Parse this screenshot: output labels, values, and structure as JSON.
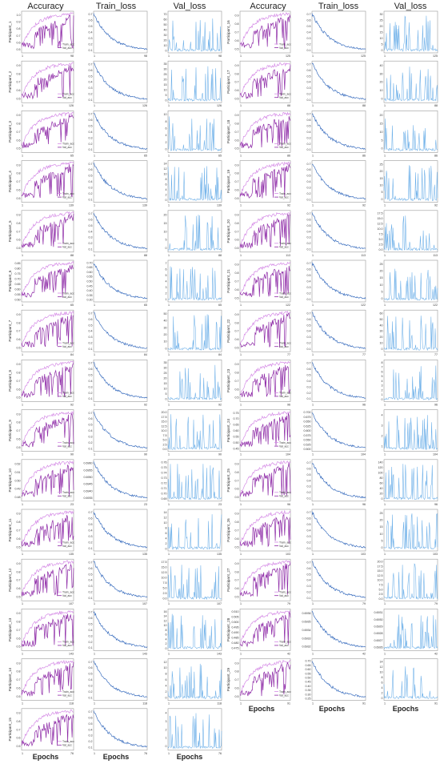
{
  "headers": {
    "accuracy": "Accuracy",
    "train_loss": "Train_loss",
    "val_loss": "Val_loss"
  },
  "x_label": "Epochs",
  "legend": {
    "train": "Train_acc",
    "val": "Val_acc"
  },
  "colors": {
    "train_acc": "#d58be6",
    "val_acc": "#8e2ba7",
    "train_loss": "#3c6fbf",
    "val_loss": "#6aaee8",
    "frame": "#999999"
  },
  "chart_data": {
    "type": "line",
    "columns": [
      "Accuracy",
      "Train_loss",
      "Val_loss"
    ],
    "participants": [
      {
        "name": "Participant_1",
        "epochs": 98,
        "acc_yticks": [
          "0.5",
          "0.6",
          "0.7",
          "0.8",
          "0.9",
          "1.0"
        ],
        "tl_yticks": [
          "0.1",
          "0.2",
          "0.3",
          "0.4",
          "0.5",
          "0.6",
          "0.7"
        ],
        "vl_yticks": [
          "0",
          "10",
          "20",
          "30",
          "40",
          "50",
          "60",
          "70"
        ]
      },
      {
        "name": "Participant_2",
        "epochs": 126,
        "acc_yticks": [
          "0.5",
          "0.6",
          "0.7",
          "0.8",
          "0.9"
        ],
        "tl_yticks": [
          "0.1",
          "0.2",
          "0.3",
          "0.4",
          "0.5",
          "0.6",
          "0.7"
        ],
        "vl_yticks": [
          "0",
          "5",
          "10",
          "15",
          "20",
          "25",
          "30",
          "35"
        ]
      },
      {
        "name": "Participant_3",
        "epochs": 65,
        "acc_yticks": [
          "0.5",
          "0.6",
          "0.7",
          "0.8",
          "0.9"
        ],
        "tl_yticks": [
          "0.1",
          "0.2",
          "0.3",
          "0.4",
          "0.5",
          "0.6",
          "0.7"
        ],
        "vl_yticks": [
          "0",
          "2",
          "4",
          "6",
          "8",
          "10"
        ]
      },
      {
        "name": "Participant_4",
        "epochs": 139,
        "acc_yticks": [
          "0.5",
          "0.6",
          "0.7",
          "0.8",
          "0.9"
        ],
        "tl_yticks": [
          "0.1",
          "0.2",
          "0.3",
          "0.4",
          "0.5",
          "0.6",
          "0.7"
        ],
        "vl_yticks": [
          "0",
          "2",
          "4",
          "6",
          "8",
          "10",
          "12",
          "14"
        ]
      },
      {
        "name": "Participant_5",
        "epochs": 88,
        "acc_yticks": [
          "0.5",
          "0.6",
          "0.7",
          "0.8",
          "0.9"
        ],
        "tl_yticks": [
          "0.1",
          "0.2",
          "0.3",
          "0.4",
          "0.5",
          "0.6",
          "0.7"
        ],
        "vl_yticks": [
          "0",
          "5",
          "10",
          "15",
          "20"
        ]
      },
      {
        "name": "Participant_6",
        "epochs": 65,
        "acc_yticks": [
          "0.50",
          "0.55",
          "0.60",
          "0.65",
          "0.70",
          "0.75",
          "0.80",
          "0.85"
        ],
        "tl_yticks": [
          "0.30",
          "0.35",
          "0.40",
          "0.45",
          "0.50",
          "0.55",
          "0.60",
          "0.65",
          "0.70"
        ],
        "vl_yticks": [
          "1",
          "2",
          "3",
          "4",
          "5",
          "6",
          "7"
        ]
      },
      {
        "name": "Participant_7",
        "epochs": 84,
        "acc_yticks": [
          "0.5",
          "0.6",
          "0.7",
          "0.8",
          "0.9"
        ],
        "tl_yticks": [
          "0.1",
          "0.2",
          "0.3",
          "0.4",
          "0.5",
          "0.6",
          "0.7"
        ],
        "vl_yticks": [
          "0",
          "10",
          "20",
          "30",
          "40",
          "50"
        ]
      },
      {
        "name": "Participant_8",
        "epochs": 92,
        "acc_yticks": [
          "0.5",
          "0.6",
          "0.7",
          "0.8",
          "0.9"
        ],
        "tl_yticks": [
          "0.1",
          "0.2",
          "0.3",
          "0.4",
          "0.5",
          "0.6",
          "0.7"
        ],
        "vl_yticks": [
          "0",
          "5",
          "10",
          "15",
          "20",
          "25",
          "30",
          "35"
        ]
      },
      {
        "name": "Participant_9",
        "epochs": 90,
        "acc_yticks": [
          "0.5",
          "0.6",
          "0.7",
          "0.8",
          "0.9"
        ],
        "tl_yticks": [
          "0.1",
          "0.2",
          "0.3",
          "0.4",
          "0.5",
          "0.6",
          "0.7"
        ],
        "vl_yticks": [
          "0.0",
          "2.5",
          "5.0",
          "7.5",
          "10.0",
          "12.5",
          "15.0",
          "17.5",
          "20.0"
        ]
      },
      {
        "name": "Participant_10",
        "epochs": 23,
        "acc_yticks": [
          "0.48",
          "0.49",
          "0.50",
          "0.51",
          "0.52"
        ],
        "tl_yticks": [
          "0.6935",
          "0.6940",
          "0.6945",
          "0.6950",
          "0.6955",
          "0.6960"
        ],
        "vl_yticks": [
          "0.69",
          "0.70",
          "0.71",
          "0.72",
          "0.73",
          "0.74",
          "0.75",
          "0.76"
        ]
      },
      {
        "name": "Participant_11",
        "epochs": 135,
        "acc_yticks": [
          "0.5",
          "0.6",
          "0.7",
          "0.8",
          "0.9"
        ],
        "tl_yticks": [
          "0.1",
          "0.2",
          "0.3",
          "0.4",
          "0.5",
          "0.6",
          "0.7"
        ],
        "vl_yticks": [
          "0",
          "2",
          "4",
          "6",
          "8",
          "10",
          "12",
          "14"
        ]
      },
      {
        "name": "Participant_12",
        "epochs": 107,
        "acc_yticks": [
          "0.5",
          "0.6",
          "0.7",
          "0.8",
          "0.9"
        ],
        "tl_yticks": [
          "0.1",
          "0.2",
          "0.3",
          "0.4",
          "0.5",
          "0.6",
          "0.7"
        ],
        "vl_yticks": [
          "0.0",
          "2.5",
          "5.0",
          "7.5",
          "10.0",
          "12.5",
          "15.0",
          "17.5"
        ]
      },
      {
        "name": "Participant_13",
        "epochs": 143,
        "acc_yticks": [
          "0.5",
          "0.6",
          "0.7",
          "0.8",
          "0.9"
        ],
        "tl_yticks": [
          "0.1",
          "0.2",
          "0.3",
          "0.4",
          "0.5",
          "0.6",
          "0.7"
        ],
        "vl_yticks": [
          "0",
          "2",
          "4",
          "6",
          "8",
          "10",
          "12",
          "14",
          "16"
        ]
      },
      {
        "name": "Participant_14",
        "epochs": 118,
        "acc_yticks": [
          "0.5",
          "0.6",
          "0.7",
          "0.8",
          "0.9"
        ],
        "tl_yticks": [
          "0.1",
          "0.2",
          "0.3",
          "0.4",
          "0.5",
          "0.6",
          "0.7"
        ],
        "vl_yticks": [
          "0",
          "2",
          "4",
          "6",
          "8",
          "10",
          "12"
        ]
      },
      {
        "name": "Participant_15",
        "epochs": 76,
        "acc_yticks": [
          "0.5",
          "0.6",
          "0.7",
          "0.8",
          "0.9"
        ],
        "tl_yticks": [
          "0.1",
          "0.2",
          "0.3",
          "0.4",
          "0.5",
          "0.6",
          "0.7"
        ],
        "vl_yticks": [
          "0",
          "1",
          "2",
          "3",
          "4"
        ]
      },
      {
        "name": "Participant_16",
        "epochs": 125,
        "acc_yticks": [
          "0.5",
          "0.6",
          "0.7",
          "0.8",
          "0.9"
        ],
        "tl_yticks": [
          "0.1",
          "0.2",
          "0.3",
          "0.4",
          "0.5",
          "0.6",
          "0.7"
        ],
        "vl_yticks": [
          "0",
          "5",
          "10",
          "15",
          "20",
          "25",
          "30"
        ]
      },
      {
        "name": "Participant_17",
        "epochs": 88,
        "acc_yticks": [
          "0.5",
          "0.6",
          "0.7",
          "0.8",
          "0.9"
        ],
        "tl_yticks": [
          "0.1",
          "0.2",
          "0.3",
          "0.4",
          "0.5",
          "0.6",
          "0.7"
        ],
        "vl_yticks": [
          "0",
          "10",
          "20",
          "30",
          "40"
        ]
      },
      {
        "name": "Participant_18",
        "epochs": 86,
        "acc_yticks": [
          "0.5",
          "0.6",
          "0.7",
          "0.8",
          "0.9"
        ],
        "tl_yticks": [
          "0.1",
          "0.2",
          "0.3",
          "0.4",
          "0.5",
          "0.6",
          "0.7"
        ],
        "vl_yticks": [
          "0",
          "5",
          "10",
          "15",
          "20"
        ]
      },
      {
        "name": "Participant_19",
        "epochs": 92,
        "acc_yticks": [
          "0.5",
          "0.6",
          "0.7",
          "0.8",
          "0.9"
        ],
        "tl_yticks": [
          "0.1",
          "0.2",
          "0.3",
          "0.4",
          "0.5",
          "0.6",
          "0.7"
        ],
        "vl_yticks": [
          "0",
          "5",
          "10",
          "15",
          "20",
          "25"
        ]
      },
      {
        "name": "Participant_20",
        "epochs": 113,
        "acc_yticks": [
          "0.5",
          "0.6",
          "0.7",
          "0.8",
          "0.9"
        ],
        "tl_yticks": [
          "0.1",
          "0.2",
          "0.3",
          "0.4",
          "0.5",
          "0.6",
          "0.7"
        ],
        "vl_yticks": [
          "0.0",
          "2.5",
          "5.0",
          "7.5",
          "10.0",
          "12.5",
          "15.0",
          "17.5"
        ]
      },
      {
        "name": "Participant_21",
        "epochs": 122,
        "acc_yticks": [
          "0.5",
          "0.6",
          "0.7",
          "0.8",
          "0.9"
        ],
        "tl_yticks": [
          "0.1",
          "0.2",
          "0.3",
          "0.4",
          "0.5",
          "0.6",
          "0.7"
        ],
        "vl_yticks": [
          "0",
          "5",
          "10",
          "15",
          "20",
          "25"
        ]
      },
      {
        "name": "Participant_22",
        "epochs": 77,
        "acc_yticks": [
          "0.5",
          "0.6",
          "0.7",
          "0.8",
          "0.9"
        ],
        "tl_yticks": [
          "0.1",
          "0.2",
          "0.3",
          "0.4",
          "0.5",
          "0.6",
          "0.7"
        ],
        "vl_yticks": [
          "0",
          "10",
          "20",
          "30",
          "40",
          "50",
          "60"
        ]
      },
      {
        "name": "Participant_23",
        "epochs": 96,
        "acc_yticks": [
          "0.5",
          "0.6",
          "0.7",
          "0.8",
          "0.9"
        ],
        "tl_yticks": [
          "0.1",
          "0.2",
          "0.3",
          "0.4",
          "0.5",
          "0.6",
          "0.7"
        ],
        "vl_yticks": [
          "0",
          "1",
          "2",
          "3",
          "4",
          "5",
          "6",
          "7",
          "8"
        ]
      },
      {
        "name": "Participant_24",
        "epochs": 104,
        "acc_yticks": [
          "0.45",
          "0.50",
          "0.55",
          "0.60",
          "0.65",
          "0.70",
          "0.75"
        ],
        "tl_yticks": [
          "0.500",
          "0.525",
          "0.550",
          "0.575",
          "0.600",
          "0.625",
          "0.650",
          "0.675",
          "0.700"
        ],
        "vl_yticks": [
          "1",
          "2",
          "3",
          "4"
        ]
      },
      {
        "name": "Participant_25",
        "epochs": 96,
        "acc_yticks": [
          "0.5",
          "0.6",
          "0.7",
          "0.8",
          "0.9"
        ],
        "tl_yticks": [
          "0.1",
          "0.2",
          "0.3",
          "0.4",
          "0.5",
          "0.6",
          "0.7"
        ],
        "vl_yticks": [
          "0",
          "20",
          "40",
          "60",
          "80",
          "100",
          "120",
          "140"
        ]
      },
      {
        "name": "Participant_26",
        "epochs": 103,
        "acc_yticks": [
          "0.5",
          "0.6",
          "0.7",
          "0.8",
          "0.9"
        ],
        "tl_yticks": [
          "0.1",
          "0.2",
          "0.3",
          "0.4",
          "0.5",
          "0.6",
          "0.7"
        ],
        "vl_yticks": [
          "0",
          "5",
          "10",
          "15",
          "20",
          "25"
        ]
      },
      {
        "name": "Participant_27",
        "epochs": 79,
        "acc_yticks": [
          "0.5",
          "0.6",
          "0.7",
          "0.8",
          "0.9"
        ],
        "tl_yticks": [
          "0.1",
          "0.2",
          "0.3",
          "0.4",
          "0.5",
          "0.6",
          "0.7"
        ],
        "vl_yticks": [
          "0.0",
          "2.5",
          "5.0",
          "7.5",
          "10.0",
          "12.5",
          "15.0",
          "17.5",
          "20.0"
        ]
      },
      {
        "name": "Participant_28",
        "epochs": 42,
        "acc_yticks": [
          "0.475",
          "0.480",
          "0.485",
          "0.490",
          "0.495",
          "0.500",
          "0.505",
          "0.510"
        ],
        "tl_yticks": [
          "0.6932",
          "0.6933",
          "0.6934",
          "0.6935",
          "0.6936"
        ],
        "vl_yticks": [
          "0.6926",
          "0.6927",
          "0.6928",
          "0.6929",
          "0.6930",
          "0.6931"
        ]
      },
      {
        "name": "Participant_29",
        "epochs": 91,
        "acc_yticks": [
          "0.5",
          "0.6",
          "0.7",
          "0.8",
          "0.9"
        ],
        "tl_yticks": [
          "0.25",
          "0.30",
          "0.35",
          "0.40",
          "0.45",
          "0.50",
          "0.55",
          "0.60",
          "0.65",
          "0.70"
        ],
        "vl_yticks": [
          "0",
          "2",
          "4",
          "6",
          "8",
          "10",
          "12",
          "14"
        ]
      }
    ]
  }
}
